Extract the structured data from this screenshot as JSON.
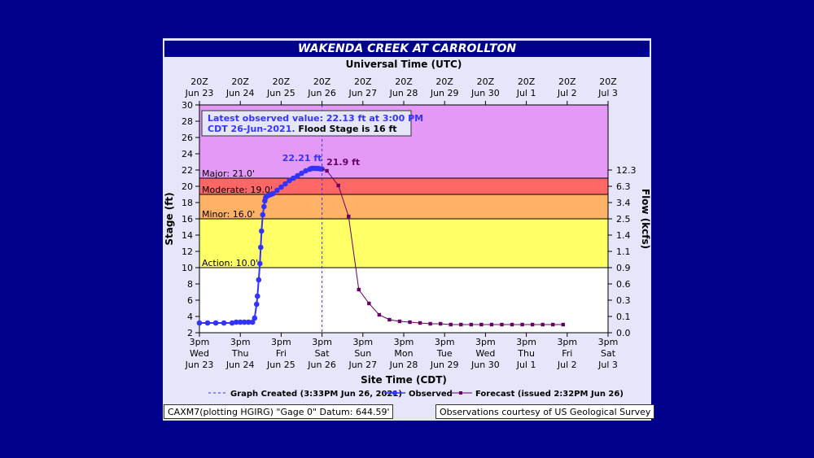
{
  "chart_data": {
    "type": "line",
    "title": "WAKENDA CREEK AT CARROLLTON",
    "top_axis_title": "Universal Time (UTC)",
    "bottom_axis_title": "Site Time (CDT)",
    "ylabel": "Stage (ft)",
    "ylabel_right": "Flow (kcfs)",
    "ylim": [
      2,
      30
    ],
    "y_ticks": [
      2,
      4,
      6,
      8,
      10,
      12,
      14,
      16,
      18,
      20,
      22,
      24,
      26,
      28,
      30
    ],
    "x_range_days": [
      0,
      10
    ],
    "top_ticks": [
      {
        "line1": "20Z",
        "line2": "Jun 23"
      },
      {
        "line1": "20Z",
        "line2": "Jun 24"
      },
      {
        "line1": "20Z",
        "line2": "Jun 25"
      },
      {
        "line1": "20Z",
        "line2": "Jun 26"
      },
      {
        "line1": "20Z",
        "line2": "Jun 27"
      },
      {
        "line1": "20Z",
        "line2": "Jun 28"
      },
      {
        "line1": "20Z",
        "line2": "Jun 29"
      },
      {
        "line1": "20Z",
        "line2": "Jun 30"
      },
      {
        "line1": "20Z",
        "line2": "Jul  1"
      },
      {
        "line1": "20Z",
        "line2": "Jul  2"
      },
      {
        "line1": "20Z",
        "line2": "Jul  3"
      }
    ],
    "bottom_ticks": [
      {
        "line1": "3pm",
        "line2": "Wed",
        "line3": "Jun 23"
      },
      {
        "line1": "3pm",
        "line2": "Thu",
        "line3": "Jun 24"
      },
      {
        "line1": "3pm",
        "line2": "Fri",
        "line3": "Jun 25"
      },
      {
        "line1": "3pm",
        "line2": "Sat",
        "line3": "Jun 26"
      },
      {
        "line1": "3pm",
        "line2": "Sun",
        "line3": "Jun 27"
      },
      {
        "line1": "3pm",
        "line2": "Mon",
        "line3": "Jun 28"
      },
      {
        "line1": "3pm",
        "line2": "Tue",
        "line3": "Jun 29"
      },
      {
        "line1": "3pm",
        "line2": "Wed",
        "line3": "Jun 30"
      },
      {
        "line1": "3pm",
        "line2": "Thu",
        "line3": "Jul 1"
      },
      {
        "line1": "3pm",
        "line2": "Fri",
        "line3": "Jul 2"
      },
      {
        "line1": "3pm",
        "line2": "Sat",
        "line3": "Jul 3"
      }
    ],
    "flow_ticks": [
      {
        "stage": 2,
        "label": "0.0"
      },
      {
        "stage": 4,
        "label": "0.1"
      },
      {
        "stage": 6,
        "label": "0.3"
      },
      {
        "stage": 8,
        "label": "0.6"
      },
      {
        "stage": 10,
        "label": "0.9"
      },
      {
        "stage": 12,
        "label": "1.1"
      },
      {
        "stage": 14,
        "label": "1.4"
      },
      {
        "stage": 16,
        "label": "2.5"
      },
      {
        "stage": 18,
        "label": "3.4"
      },
      {
        "stage": 20,
        "label": "6.3"
      },
      {
        "stage": 22,
        "label": "12.3"
      }
    ],
    "flood_bands": [
      {
        "name": "Major",
        "label": "Major: 21.0'",
        "from": 21,
        "to": 30,
        "color": "#e599f7"
      },
      {
        "name": "Moderate",
        "label": "Moderate: 19.0'",
        "from": 19,
        "to": 21,
        "color": "#ff6666"
      },
      {
        "name": "Minor",
        "label": "Minor: 16.0'",
        "from": 16,
        "to": 19,
        "color": "#ffb266"
      },
      {
        "name": "Action",
        "label": "Action: 10.0'",
        "from": 10,
        "to": 16,
        "color": "#ffff66"
      },
      {
        "name": "Normal",
        "label": "",
        "from": 2,
        "to": 10,
        "color": "#ffffff"
      }
    ],
    "observed": {
      "name": "Observed",
      "x": [
        0,
        0.2,
        0.4,
        0.6,
        0.8,
        0.9,
        1.0,
        1.1,
        1.2,
        1.3,
        1.35,
        1.4,
        1.42,
        1.45,
        1.48,
        1.5,
        1.52,
        1.55,
        1.58,
        1.6,
        1.62,
        1.65,
        1.7,
        1.75,
        1.8,
        1.9,
        2.0,
        2.1,
        2.2,
        2.3,
        2.4,
        2.5,
        2.6,
        2.7,
        2.75,
        2.8,
        2.85,
        2.9,
        2.95,
        3.0
      ],
      "y": [
        3.2,
        3.2,
        3.2,
        3.2,
        3.2,
        3.3,
        3.3,
        3.3,
        3.3,
        3.3,
        3.8,
        5.5,
        6.5,
        8.5,
        10.5,
        12.5,
        14.5,
        16.5,
        17.5,
        18.2,
        18.6,
        18.8,
        18.9,
        19.0,
        19.1,
        19.5,
        19.9,
        20.3,
        20.7,
        21.0,
        21.3,
        21.6,
        21.9,
        22.1,
        22.2,
        22.21,
        22.2,
        22.2,
        22.15,
        22.13
      ]
    },
    "forecast": {
      "name": "Forecast (issued 2:32PM Jun 26)",
      "x": [
        3.12,
        3.4,
        3.65,
        3.9,
        4.15,
        4.4,
        4.65,
        4.9,
        5.15,
        5.4,
        5.65,
        5.9,
        6.15,
        6.4,
        6.65,
        6.9,
        7.15,
        7.4,
        7.65,
        7.9,
        8.15,
        8.4,
        8.65,
        8.9
      ],
      "y": [
        21.9,
        20.1,
        16.3,
        7.3,
        5.6,
        4.2,
        3.6,
        3.4,
        3.3,
        3.2,
        3.1,
        3.1,
        3.0,
        3.0,
        3.0,
        3.0,
        3.0,
        3.0,
        3.0,
        3.0,
        3.0,
        3.0,
        3.0,
        3.0
      ]
    },
    "graph_created_x": 3.0,
    "peak_observed_label": "22.21 ft",
    "peak_forecast_label": "21.9 ft",
    "latest_box": {
      "line1": "Latest observed value: 22.13  ft at 3:00 PM",
      "line2a": "CDT 26-Jun-2021. ",
      "line2b": "Flood Stage is 16 ft"
    },
    "legend": {
      "graph_created": "Graph Created (3:33PM Jun 26, 2021)",
      "observed": "Observed",
      "forecast": "Forecast (issued 2:32PM Jun 26)"
    },
    "colors": {
      "observed": "#3333ff",
      "forecast": "#660066",
      "graph_created": "#3333ff"
    }
  },
  "footer": {
    "left": "CAXM7(plotting HGIRG) \"Gage 0\" Datum:  644.59'",
    "right": "Observations courtesy of US Geological Survey"
  }
}
